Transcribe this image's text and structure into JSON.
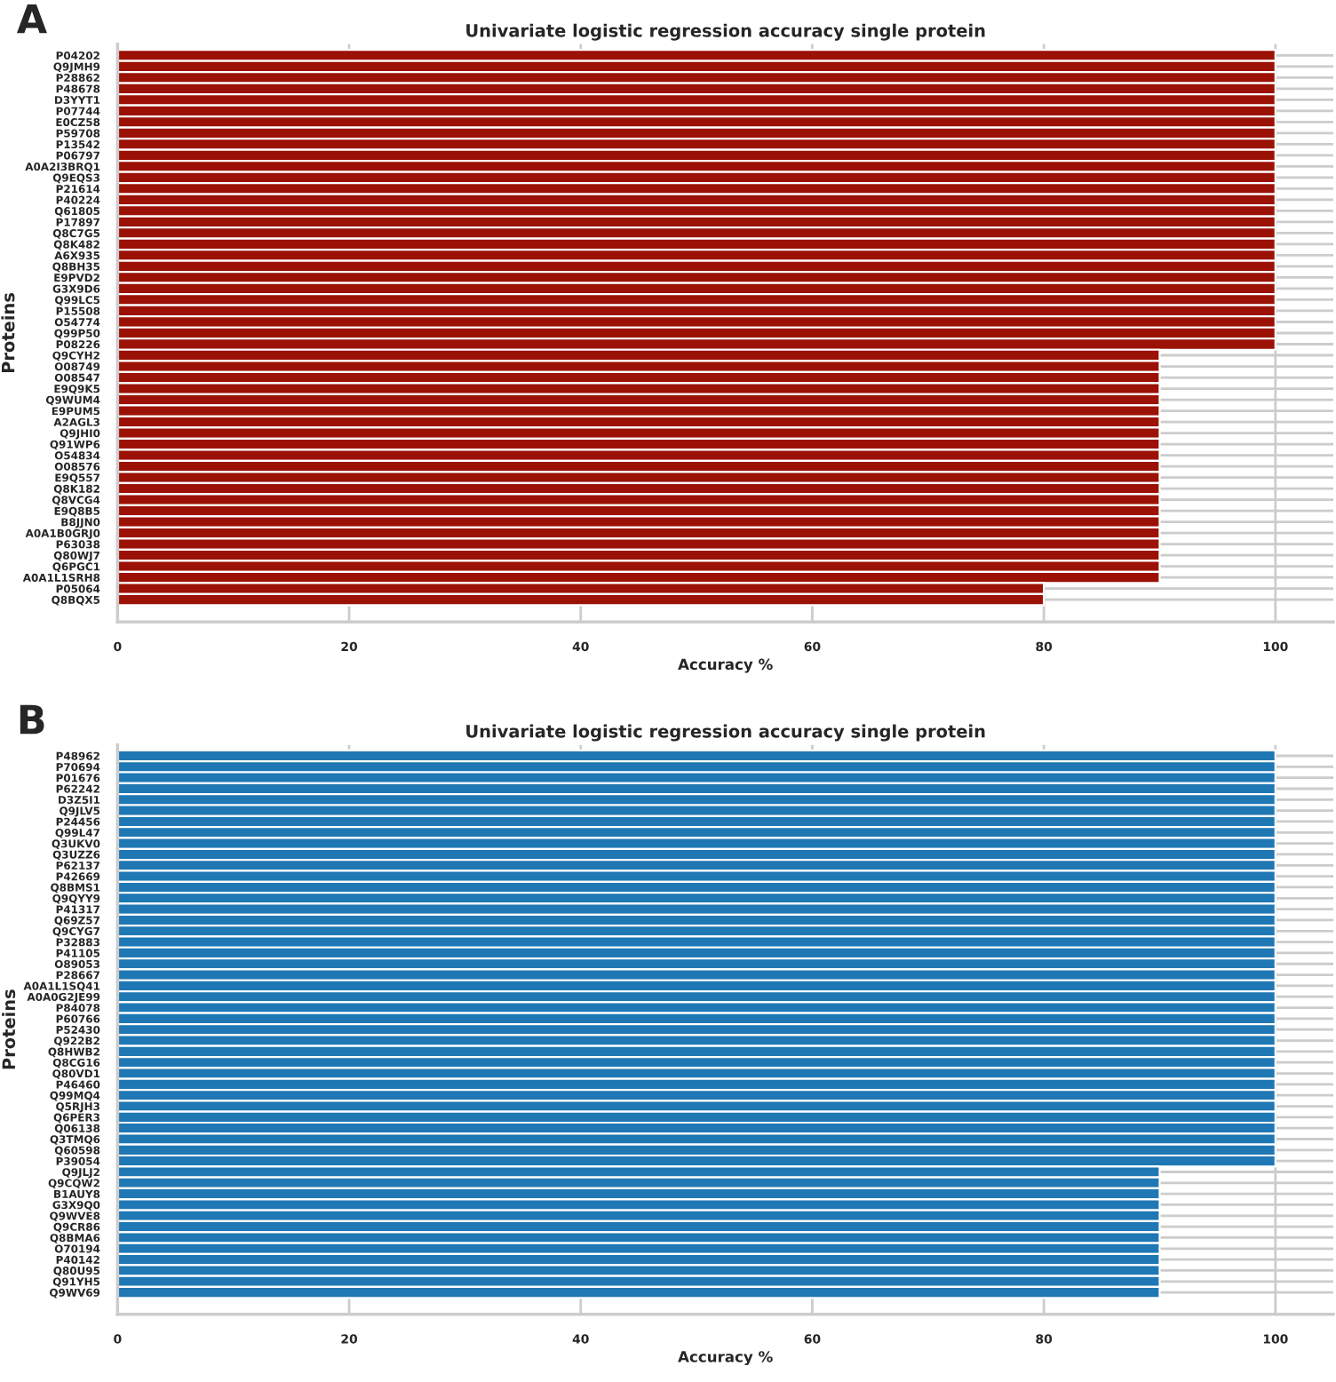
{
  "chart_data": [
    {
      "type": "bar",
      "orientation": "horizontal",
      "title": "Univariate logistic regression accuracy single protein",
      "xlabel": "Accuracy %",
      "ylabel": "Proteins",
      "annotations": [
        "A"
      ],
      "color": "#9b1106",
      "grid": true,
      "xlim": [
        0,
        105
      ],
      "xticks": [
        0,
        20,
        40,
        60,
        80,
        100
      ],
      "categories": [
        "P04202",
        "Q9JMH9",
        "P28862",
        "P48678",
        "D3YYT1",
        "P07744",
        "E0CZ58",
        "P59708",
        "P13542",
        "P06797",
        "A0A2I3BRQ1",
        "Q9EQS3",
        "P21614",
        "P40224",
        "Q61805",
        "P17897",
        "Q8C7G5",
        "Q8K482",
        "A6X935",
        "Q8BH35",
        "E9PVD2",
        "G3X9D6",
        "Q99LC5",
        "P15508",
        "O54774",
        "Q99P50",
        "P08226",
        "Q9CYH2",
        "O08749",
        "O08547",
        "E9Q9K5",
        "Q9WUM4",
        "E9PUM5",
        "A2AGL3",
        "Q9JHI0",
        "Q91WP6",
        "O54834",
        "O08576",
        "E9Q557",
        "Q8K182",
        "Q8VCG4",
        "E9Q8B5",
        "B8JJN0",
        "A0A1B0GRJ0",
        "P63038",
        "Q80WJ7",
        "Q6PGC1",
        "A0A1L1SRH8",
        "P05064",
        "Q8BQX5"
      ],
      "values": [
        100,
        100,
        100,
        100,
        100,
        100,
        100,
        100,
        100,
        100,
        100,
        100,
        100,
        100,
        100,
        100,
        100,
        100,
        100,
        100,
        100,
        100,
        100,
        100,
        100,
        100,
        100,
        90,
        90,
        90,
        90,
        90,
        90,
        90,
        90,
        90,
        90,
        90,
        90,
        90,
        90,
        90,
        90,
        90,
        90,
        90,
        90,
        90,
        80,
        80
      ]
    },
    {
      "type": "bar",
      "orientation": "horizontal",
      "title": "Univariate logistic regression accuracy single protein",
      "xlabel": "Accuracy %",
      "ylabel": "Proteins",
      "annotations": [
        "B"
      ],
      "color": "#1f77b4",
      "grid": true,
      "xlim": [
        0,
        105
      ],
      "xticks": [
        0,
        20,
        40,
        60,
        80,
        100
      ],
      "categories": [
        "P48962",
        "P70694",
        "P01676",
        "P62242",
        "D3Z5I1",
        "Q9JLV5",
        "P24456",
        "Q99L47",
        "Q3UKV0",
        "Q3UZZ6",
        "P62137",
        "P42669",
        "Q8BMS1",
        "Q9QYY9",
        "P41317",
        "Q69Z57",
        "Q9CYG7",
        "P32883",
        "P41105",
        "O89053",
        "P28667",
        "A0A1L1SQ41",
        "A0A0G2JE99",
        "P84078",
        "P60766",
        "P52430",
        "Q922B2",
        "Q8HWB2",
        "Q8CG16",
        "Q80VD1",
        "P46460",
        "Q99MQ4",
        "Q5RJH3",
        "Q6PER3",
        "Q06138",
        "Q3TMQ6",
        "Q60598",
        "P39054",
        "Q9JLJ2",
        "Q9CQW2",
        "B1AUY8",
        "G3X9Q0",
        "Q9WVE8",
        "Q9CR86",
        "Q8BMA6",
        "O70194",
        "P40142",
        "Q80U95",
        "Q91YH5",
        "Q9WV69"
      ],
      "values": [
        100,
        100,
        100,
        100,
        100,
        100,
        100,
        100,
        100,
        100,
        100,
        100,
        100,
        100,
        100,
        100,
        100,
        100,
        100,
        100,
        100,
        100,
        100,
        100,
        100,
        100,
        100,
        100,
        100,
        100,
        100,
        100,
        100,
        100,
        100,
        100,
        100,
        100,
        90,
        90,
        90,
        90,
        90,
        90,
        90,
        90,
        90,
        90,
        90,
        90
      ]
    }
  ]
}
